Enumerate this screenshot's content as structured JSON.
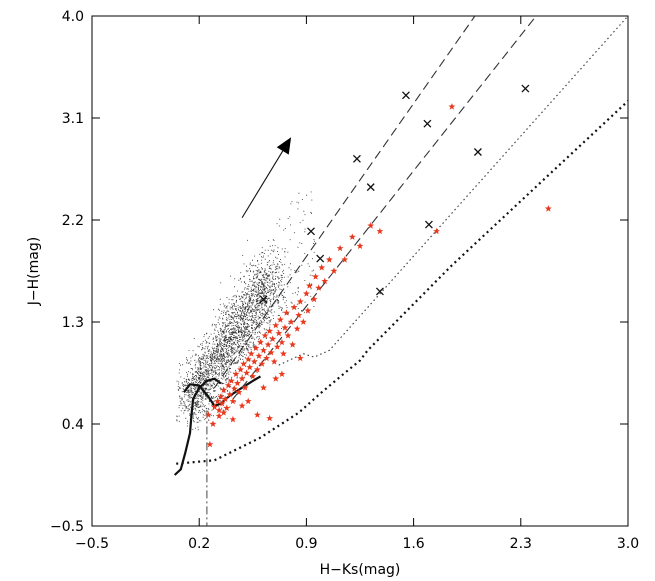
{
  "chart_data": {
    "type": "scatter",
    "xlabel": "H−Ks(mag)",
    "ylabel": "J−H(mag)",
    "xlim": [
      -0.5,
      3.0
    ],
    "ylim": [
      -0.5,
      4.0
    ],
    "xticks": [
      "−0.5",
      "0.2",
      "0.9",
      "1.6",
      "2.3",
      "3.0"
    ],
    "yticks": [
      "−0.5",
      "0.4",
      "1.3",
      "2.2",
      "3.1",
      "4.0"
    ],
    "xtick_values": [
      -0.5,
      0.2,
      0.9,
      1.6,
      2.3,
      3.0
    ],
    "ytick_values": [
      -0.5,
      0.4,
      1.3,
      2.2,
      3.1,
      4.0
    ],
    "grid": false,
    "series": [
      {
        "kind": "star-markers",
        "color": "#e8381e",
        "points": [
          [
            0.3,
            0.55
          ],
          [
            0.32,
            0.6
          ],
          [
            0.33,
            0.52
          ],
          [
            0.34,
            0.64
          ],
          [
            0.35,
            0.58
          ],
          [
            0.36,
            0.7
          ],
          [
            0.37,
            0.62
          ],
          [
            0.38,
            0.54
          ],
          [
            0.39,
            0.74
          ],
          [
            0.4,
            0.66
          ],
          [
            0.41,
            0.78
          ],
          [
            0.42,
            0.6
          ],
          [
            0.43,
            0.71
          ],
          [
            0.44,
            0.84
          ],
          [
            0.45,
            0.76
          ],
          [
            0.46,
            0.68
          ],
          [
            0.47,
            0.88
          ],
          [
            0.48,
            0.8
          ],
          [
            0.49,
            0.93
          ],
          [
            0.5,
            0.72
          ],
          [
            0.51,
            0.85
          ],
          [
            0.52,
            0.97
          ],
          [
            0.53,
            0.9
          ],
          [
            0.54,
            1.02
          ],
          [
            0.55,
            0.82
          ],
          [
            0.56,
            0.95
          ],
          [
            0.57,
            1.07
          ],
          [
            0.58,
            0.88
          ],
          [
            0.59,
            1.0
          ],
          [
            0.6,
            1.12
          ],
          [
            0.61,
            0.93
          ],
          [
            0.62,
            1.05
          ],
          [
            0.63,
            1.18
          ],
          [
            0.64,
            0.98
          ],
          [
            0.65,
            1.1
          ],
          [
            0.66,
            1.22
          ],
          [
            0.67,
            1.03
          ],
          [
            0.68,
            1.15
          ],
          [
            0.69,
            0.95
          ],
          [
            0.7,
            1.27
          ],
          [
            0.71,
            1.08
          ],
          [
            0.72,
            1.2
          ],
          [
            0.73,
            1.32
          ],
          [
            0.74,
            1.12
          ],
          [
            0.75,
            1.02
          ],
          [
            0.76,
            1.25
          ],
          [
            0.77,
            1.38
          ],
          [
            0.78,
            1.18
          ],
          [
            0.8,
            1.3
          ],
          [
            0.81,
            1.1
          ],
          [
            0.82,
            1.43
          ],
          [
            0.84,
            1.24
          ],
          [
            0.85,
            1.36
          ],
          [
            0.86,
            1.48
          ],
          [
            0.88,
            1.3
          ],
          [
            0.9,
            1.55
          ],
          [
            0.91,
            1.4
          ],
          [
            0.92,
            1.62
          ],
          [
            0.95,
            1.5
          ],
          [
            0.96,
            1.7
          ],
          [
            0.98,
            1.6
          ],
          [
            1.0,
            1.78
          ],
          [
            1.02,
            1.66
          ],
          [
            1.05,
            1.85
          ],
          [
            1.08,
            1.75
          ],
          [
            1.12,
            1.95
          ],
          [
            1.15,
            1.85
          ],
          [
            1.2,
            2.05
          ],
          [
            1.25,
            1.97
          ],
          [
            1.32,
            2.15
          ],
          [
            1.38,
            2.1
          ],
          [
            0.42,
            0.44
          ],
          [
            0.58,
            0.48
          ],
          [
            0.66,
            0.45
          ],
          [
            0.26,
            0.48
          ],
          [
            0.29,
            0.4
          ],
          [
            0.27,
            0.22
          ],
          [
            0.74,
            0.84
          ],
          [
            0.86,
            0.98
          ],
          [
            1.75,
            2.1
          ],
          [
            1.85,
            3.2
          ],
          [
            2.48,
            2.3
          ],
          [
            0.33,
            0.47
          ],
          [
            0.36,
            0.5
          ],
          [
            0.62,
            0.72
          ],
          [
            0.52,
            0.6
          ],
          [
            0.48,
            0.56
          ],
          [
            0.7,
            0.8
          ]
        ]
      }
    ],
    "lines": [
      {
        "kind": "solid",
        "points": [
          [
            0.04,
            -0.05
          ],
          [
            0.08,
            0.0
          ],
          [
            0.11,
            0.15
          ],
          [
            0.14,
            0.32
          ],
          [
            0.15,
            0.48
          ],
          [
            0.16,
            0.62
          ],
          [
            0.2,
            0.72
          ],
          [
            0.25,
            0.78
          ],
          [
            0.3,
            0.8
          ],
          [
            0.34,
            0.76
          ]
        ]
      },
      {
        "kind": "solid",
        "points": [
          [
            0.1,
            0.68
          ],
          [
            0.14,
            0.75
          ],
          [
            0.2,
            0.74
          ],
          [
            0.26,
            0.64
          ],
          [
            0.3,
            0.56
          ],
          [
            0.34,
            0.58
          ]
        ]
      },
      {
        "kind": "solid",
        "points": [
          [
            0.34,
            0.58
          ],
          [
            0.4,
            0.65
          ],
          [
            0.48,
            0.72
          ],
          [
            0.55,
            0.78
          ],
          [
            0.6,
            0.82
          ]
        ]
      },
      {
        "kind": "dashed",
        "points": [
          [
            0.3,
            0.72
          ],
          [
            2.0,
            4.0
          ]
        ]
      },
      {
        "kind": "dashed",
        "points": [
          [
            0.42,
            0.62
          ],
          [
            2.4,
            4.0
          ]
        ]
      },
      {
        "kind": "dotted",
        "points": [
          [
            0.72,
            0.92
          ],
          [
            0.88,
            1.02
          ],
          [
            0.95,
            0.99
          ],
          [
            1.05,
            1.05
          ],
          [
            3.0,
            4.0
          ]
        ]
      },
      {
        "kind": "dotted",
        "points": [
          [
            0.05,
            0.05
          ],
          [
            0.3,
            0.08
          ],
          [
            0.6,
            0.28
          ],
          [
            0.85,
            0.5
          ],
          [
            1.0,
            0.68
          ],
          [
            1.15,
            0.85
          ],
          [
            1.25,
            0.96
          ],
          [
            1.3,
            1.05
          ],
          [
            1.85,
            1.8
          ],
          [
            3.0,
            3.25
          ]
        ]
      },
      {
        "kind": "dashdot",
        "points": [
          [
            0.25,
            0.52
          ],
          [
            0.25,
            -0.5
          ]
        ]
      }
    ],
    "crosses": [
      [
        0.62,
        1.5
      ],
      [
        0.93,
        2.1
      ],
      [
        1.23,
        2.74
      ],
      [
        1.55,
        3.3
      ],
      [
        0.99,
        1.86
      ],
      [
        1.32,
        2.49
      ],
      [
        1.69,
        3.05
      ],
      [
        1.38,
        1.57
      ],
      [
        1.7,
        2.16
      ],
      [
        2.02,
        2.8
      ],
      [
        2.33,
        3.36
      ]
    ],
    "arrow": {
      "from": [
        0.48,
        2.22
      ],
      "to": [
        0.8,
        2.93
      ]
    }
  }
}
